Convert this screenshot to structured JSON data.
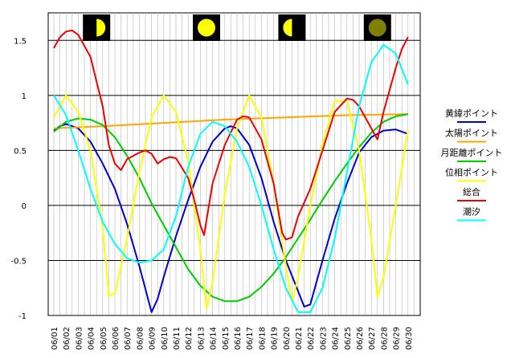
{
  "chart_data": {
    "type": "line",
    "ylim": [
      -1,
      1.75
    ],
    "y_ticks": [
      {
        "value": 1.5,
        "label": "1.5"
      },
      {
        "value": 1,
        "label": "1"
      },
      {
        "value": 0.5,
        "label": "0.5"
      },
      {
        "value": 0,
        "label": "0"
      },
      {
        "value": -0.5,
        "label": "-0.5"
      },
      {
        "value": -1,
        "label": "-1"
      }
    ],
    "categories": [
      "06/01",
      "06/02",
      "06/03",
      "06/04",
      "06/05",
      "06/06",
      "06/07",
      "06/08",
      "06/09",
      "06/10",
      "06/11",
      "06/12",
      "06/13",
      "06/14",
      "06/15",
      "06/16",
      "06/17",
      "06/18",
      "06/19",
      "06/20",
      "06/21",
      "06/22",
      "06/23",
      "06/24",
      "06/25",
      "06/26",
      "06/27",
      "06/28",
      "06/29",
      "06/30"
    ],
    "grid": {
      "horizontal": true,
      "vertical": true
    },
    "legend_position": "right",
    "moon_phases": [
      {
        "day": 4.5,
        "phase": "first-quarter"
      },
      {
        "day": 13.5,
        "phase": "full"
      },
      {
        "day": 20.5,
        "phase": "last-quarter"
      },
      {
        "day": 27.5,
        "phase": "new"
      }
    ],
    "series": [
      {
        "name": "黄緯ポイント",
        "color": "#0000cc",
        "points": [
          [
            1,
            0.68
          ],
          [
            1.5,
            0.72
          ],
          [
            2,
            0.74
          ],
          [
            3,
            0.7
          ],
          [
            4,
            0.58
          ],
          [
            5,
            0.38
          ],
          [
            6,
            0.15
          ],
          [
            7,
            -0.17
          ],
          [
            8,
            -0.55
          ],
          [
            9,
            -0.97
          ],
          [
            9.5,
            -0.85
          ],
          [
            10,
            -0.65
          ],
          [
            11,
            -0.28
          ],
          [
            12,
            0.05
          ],
          [
            13,
            0.35
          ],
          [
            14,
            0.58
          ],
          [
            15,
            0.7
          ],
          [
            15.5,
            0.72
          ],
          [
            16,
            0.7
          ],
          [
            17,
            0.55
          ],
          [
            18,
            0.25
          ],
          [
            19,
            -0.15
          ],
          [
            20,
            -0.5
          ],
          [
            21,
            -0.78
          ],
          [
            21.5,
            -0.92
          ],
          [
            22,
            -0.9
          ],
          [
            23,
            -0.5
          ],
          [
            24,
            -0.12
          ],
          [
            25,
            0.2
          ],
          [
            26,
            0.48
          ],
          [
            27,
            0.62
          ],
          [
            28,
            0.68
          ],
          [
            29,
            0.69
          ],
          [
            30,
            0.65
          ]
        ]
      },
      {
        "name": "太陽ポイント",
        "color": "#ffa500",
        "points": [
          [
            1,
            0.7
          ],
          [
            5,
            0.72
          ],
          [
            10,
            0.75
          ],
          [
            15,
            0.78
          ],
          [
            20,
            0.8
          ],
          [
            25,
            0.82
          ],
          [
            30,
            0.83
          ]
        ]
      },
      {
        "name": "月距離ポイント",
        "color": "#00cc00",
        "points": [
          [
            1,
            0.67
          ],
          [
            2,
            0.76
          ],
          [
            3,
            0.79
          ],
          [
            4,
            0.78
          ],
          [
            5,
            0.73
          ],
          [
            6,
            0.62
          ],
          [
            7,
            0.45
          ],
          [
            8,
            0.25
          ],
          [
            9,
            0.02
          ],
          [
            10,
            -0.18
          ],
          [
            11,
            -0.38
          ],
          [
            12,
            -0.58
          ],
          [
            13,
            -0.73
          ],
          [
            14,
            -0.83
          ],
          [
            15,
            -0.87
          ],
          [
            16,
            -0.87
          ],
          [
            17,
            -0.83
          ],
          [
            18,
            -0.74
          ],
          [
            19,
            -0.62
          ],
          [
            20,
            -0.47
          ],
          [
            21,
            -0.3
          ],
          [
            22,
            -0.13
          ],
          [
            23,
            0.05
          ],
          [
            24,
            0.22
          ],
          [
            25,
            0.38
          ],
          [
            26,
            0.53
          ],
          [
            27,
            0.66
          ],
          [
            28,
            0.76
          ],
          [
            29,
            0.81
          ],
          [
            30,
            0.83
          ]
        ]
      },
      {
        "name": "位相ポイント",
        "color": "#ffff00",
        "points": [
          [
            1,
            0.8
          ],
          [
            2,
            1.0
          ],
          [
            3,
            0.85
          ],
          [
            4,
            0.5
          ],
          [
            5,
            -0.2
          ],
          [
            5.5,
            -0.82
          ],
          [
            6,
            -0.8
          ],
          [
            7,
            -0.3
          ],
          [
            8,
            0.3
          ],
          [
            9,
            0.8
          ],
          [
            10,
            1.0
          ],
          [
            11,
            0.85
          ],
          [
            12,
            0.4
          ],
          [
            13,
            -0.4
          ],
          [
            13.5,
            -0.94
          ],
          [
            14,
            -0.7
          ],
          [
            15,
            0.1
          ],
          [
            16,
            0.7
          ],
          [
            17,
            1.0
          ],
          [
            18,
            0.8
          ],
          [
            19,
            0.2
          ],
          [
            20,
            -0.55
          ],
          [
            20.5,
            -0.88
          ],
          [
            21,
            -0.65
          ],
          [
            22,
            0.0
          ],
          [
            23,
            0.55
          ],
          [
            24,
            0.95
          ],
          [
            25,
            0.95
          ],
          [
            26,
            0.5
          ],
          [
            27,
            -0.3
          ],
          [
            27.5,
            -0.83
          ],
          [
            28,
            -0.65
          ],
          [
            29,
            0.0
          ],
          [
            30,
            0.68
          ]
        ]
      },
      {
        "name": "総合",
        "color": "#ee0000",
        "points": [
          [
            1,
            1.43
          ],
          [
            1.5,
            1.53
          ],
          [
            2,
            1.58
          ],
          [
            2.5,
            1.59
          ],
          [
            3,
            1.55
          ],
          [
            4,
            1.35
          ],
          [
            5,
            0.9
          ],
          [
            5.5,
            0.55
          ],
          [
            6,
            0.38
          ],
          [
            6.5,
            0.32
          ],
          [
            7,
            0.42
          ],
          [
            8,
            0.48
          ],
          [
            8.5,
            0.5
          ],
          [
            9,
            0.47
          ],
          [
            9.5,
            0.38
          ],
          [
            10,
            0.42
          ],
          [
            10.5,
            0.44
          ],
          [
            11,
            0.43
          ],
          [
            12,
            0.25
          ],
          [
            12.5,
            0.05
          ],
          [
            13,
            -0.18
          ],
          [
            13.3,
            -0.27
          ],
          [
            14,
            0.2
          ],
          [
            15,
            0.55
          ],
          [
            16,
            0.78
          ],
          [
            16.5,
            0.81
          ],
          [
            17,
            0.8
          ],
          [
            18,
            0.6
          ],
          [
            19,
            0.2
          ],
          [
            19.7,
            -0.25
          ],
          [
            20,
            -0.31
          ],
          [
            20.5,
            -0.29
          ],
          [
            21,
            -0.1
          ],
          [
            22,
            0.15
          ],
          [
            23,
            0.5
          ],
          [
            24,
            0.85
          ],
          [
            25,
            0.97
          ],
          [
            25.5,
            0.96
          ],
          [
            26,
            0.9
          ],
          [
            27,
            0.7
          ],
          [
            27.5,
            0.6
          ],
          [
            28,
            0.85
          ],
          [
            29,
            1.25
          ],
          [
            29.5,
            1.42
          ],
          [
            30,
            1.53
          ]
        ]
      },
      {
        "name": "潮汐",
        "color": "#00ffff",
        "points": [
          [
            1,
            1.0
          ],
          [
            2,
            0.82
          ],
          [
            3,
            0.5
          ],
          [
            4,
            0.15
          ],
          [
            5,
            -0.15
          ],
          [
            6,
            -0.35
          ],
          [
            7,
            -0.48
          ],
          [
            8,
            -0.52
          ],
          [
            9,
            -0.5
          ],
          [
            10,
            -0.4
          ],
          [
            11,
            -0.1
          ],
          [
            12,
            0.35
          ],
          [
            13,
            0.65
          ],
          [
            14,
            0.76
          ],
          [
            15,
            0.72
          ],
          [
            16,
            0.58
          ],
          [
            17,
            0.35
          ],
          [
            18,
            0.0
          ],
          [
            19,
            -0.4
          ],
          [
            20,
            -0.75
          ],
          [
            21,
            -0.97
          ],
          [
            22,
            -0.97
          ],
          [
            23,
            -0.75
          ],
          [
            24,
            -0.3
          ],
          [
            25,
            0.3
          ],
          [
            26,
            0.9
          ],
          [
            27,
            1.3
          ],
          [
            28,
            1.46
          ],
          [
            29,
            1.38
          ],
          [
            30,
            1.1
          ]
        ]
      }
    ]
  }
}
